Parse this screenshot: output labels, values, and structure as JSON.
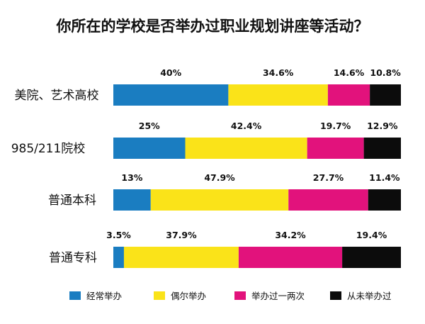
{
  "chart_data": {
    "type": "bar",
    "stacked": true,
    "orientation": "horizontal",
    "percent_scale": true,
    "title": "你所在的学校是否举办过职业规划讲座等活动？",
    "categories": [
      "美院、艺术高校",
      "985/211院校",
      "普通本科",
      "普通专科"
    ],
    "series": [
      {
        "name": "经常举办",
        "color": "#1a7dc1",
        "values": [
          40,
          25,
          13,
          3.5
        ],
        "labels": [
          "40%",
          "25%",
          "13%",
          "3.5%"
        ]
      },
      {
        "name": "偶尔举办",
        "color": "#fae319",
        "values": [
          34.6,
          42.4,
          47.9,
          37.9
        ],
        "labels": [
          "34.6%",
          "42.4%",
          "47.9%",
          "37.9%"
        ]
      },
      {
        "name": "举办过一两次",
        "color": "#e2127c",
        "values": [
          14.6,
          19.7,
          27.7,
          34.2
        ],
        "labels": [
          "14.6%",
          "19.7%",
          "27.7%",
          "34.2%"
        ]
      },
      {
        "name": "从未举办过",
        "color": "#0c0c0c",
        "values": [
          10.8,
          12.9,
          11.4,
          19.4
        ],
        "labels": [
          "10.8%",
          "12.9%",
          "11.4%",
          "19.4%"
        ]
      }
    ],
    "legend_position": "bottom",
    "grid": false
  }
}
